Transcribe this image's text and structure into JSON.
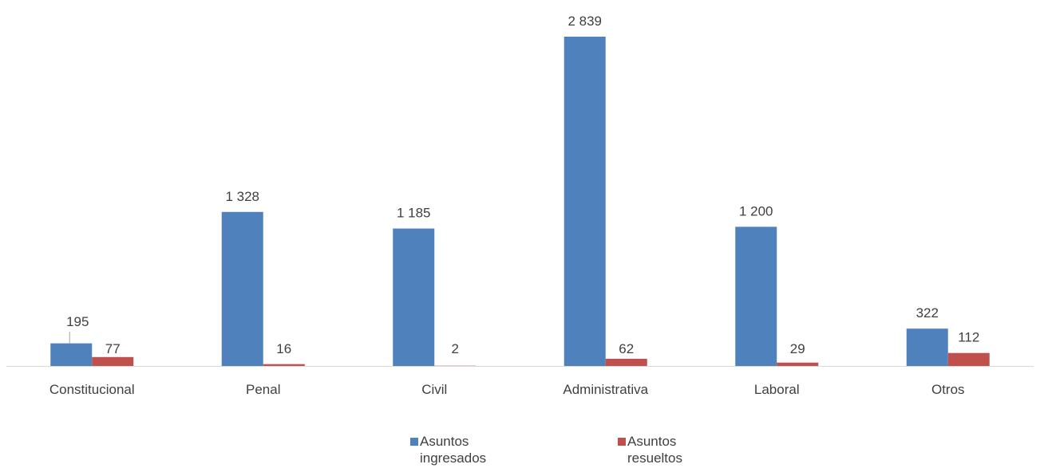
{
  "chart_data": {
    "type": "bar",
    "categories": [
      "Constitucional",
      "Penal",
      "Civil",
      "Administrativa",
      "Laboral",
      "Otros"
    ],
    "series": [
      {
        "name": "Asuntos ingresados",
        "values": [
          195,
          1328,
          1185,
          2839,
          1200,
          322
        ],
        "labels": [
          "195",
          "1 328",
          "1 185",
          "2 839",
          "1 200",
          "322"
        ],
        "color": "#4F81BD"
      },
      {
        "name": "Asuntos resueltos",
        "values": [
          77,
          16,
          2,
          62,
          29,
          112
        ],
        "labels": [
          "77",
          "16",
          "2",
          "62",
          "29",
          "112"
        ],
        "color": "#C0504D"
      }
    ],
    "ylim": [
      0,
      2839
    ],
    "grid": false,
    "legend": "bottom",
    "axis_color": "#D9D9D9"
  }
}
